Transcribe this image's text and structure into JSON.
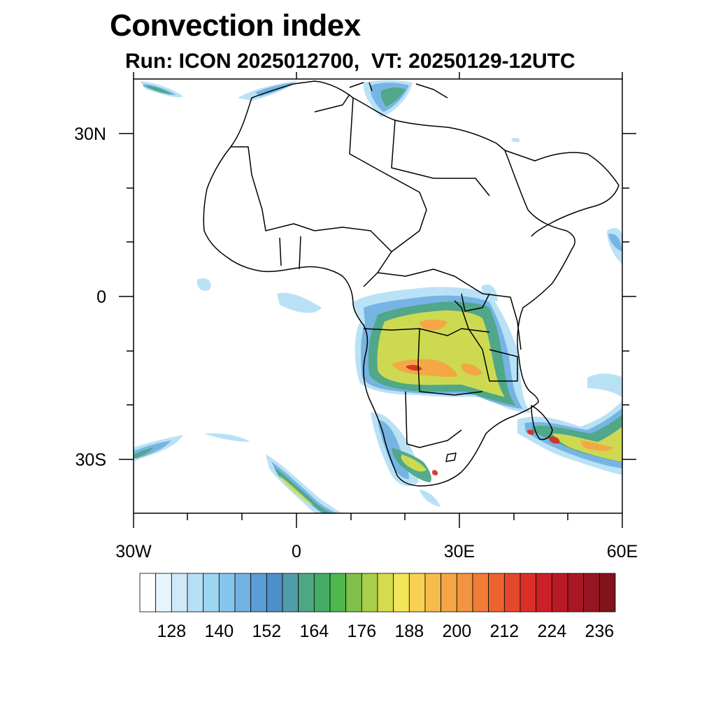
{
  "title": "Convection index",
  "subtitle": "Run: ICON 2025012700,  VT: 20250129-12UTC",
  "map": {
    "lon_range": [
      -30,
      60
    ],
    "lat_range": [
      -40,
      40
    ],
    "lon_ticks": [
      {
        "value": -30,
        "label": "30W"
      },
      {
        "value": 0,
        "label": "0"
      },
      {
        "value": 30,
        "label": "30E"
      },
      {
        "value": 60,
        "label": "60E"
      }
    ],
    "lat_ticks": [
      {
        "value": 30,
        "label": "30N"
      },
      {
        "value": 0,
        "label": "0"
      },
      {
        "value": -30,
        "label": "30S"
      }
    ],
    "coastline_color": "#000000"
  },
  "colorbar": {
    "levels": [
      120,
      124,
      128,
      132,
      136,
      140,
      144,
      148,
      152,
      156,
      160,
      164,
      168,
      172,
      176,
      180,
      184,
      188,
      192,
      196,
      200,
      204,
      208,
      212,
      216,
      220,
      224,
      228,
      232,
      236,
      240
    ],
    "labels": [
      "128",
      "140",
      "152",
      "164",
      "176",
      "188",
      "200",
      "212",
      "224",
      "236"
    ],
    "colors": [
      "#ffffff",
      "#e8f5fc",
      "#cfe9f8",
      "#b6e0f5",
      "#9dd6f3",
      "#86c6ea",
      "#72b2e2",
      "#5c9dd6",
      "#4d8fc8",
      "#4f9da8",
      "#4ea784",
      "#45ac68",
      "#4cb84e",
      "#7fc04a",
      "#a8cf4a",
      "#d4dc4e",
      "#f2e55a",
      "#f8d152",
      "#f6bb4b",
      "#f5a545",
      "#f39440",
      "#f07c37",
      "#ec6330",
      "#e4472b",
      "#da2f28",
      "#cc1f27",
      "#ba1a25",
      "#a81822",
      "#951620",
      "#80131c"
    ]
  }
}
